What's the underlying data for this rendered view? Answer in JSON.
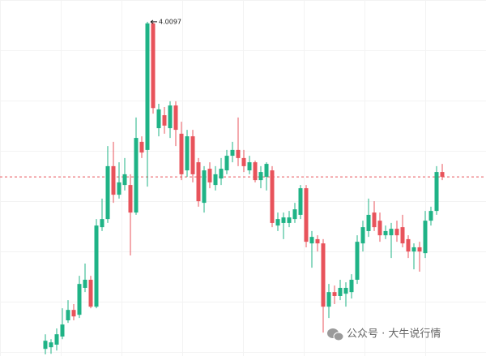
{
  "chart_data": {
    "type": "candlestick",
    "up_color": "#1fb386",
    "down_color": "#e8535b",
    "ylim": [
      2.98,
      4.077
    ],
    "open": [
      3.002,
      3.007,
      3.015,
      3.04,
      3.09,
      3.122,
      3.107,
      3.19,
      3.215,
      3.132,
      3.377,
      3.402,
      3.565,
      3.477,
      3.507,
      3.507,
      3.422,
      3.64,
      3.615,
      4.005,
      3.682,
      3.722,
      3.682,
      3.752,
      3.665,
      3.552,
      3.657,
      3.577,
      3.452,
      3.557,
      3.507,
      3.527,
      3.552,
      3.597,
      3.615,
      3.59,
      3.552,
      3.577,
      3.522,
      3.532,
      3.552,
      3.382,
      3.39,
      3.39,
      3.402,
      3.415,
      3.497,
      3.327,
      3.34,
      3.327,
      3.132,
      3.177,
      3.165,
      3.172,
      3.177,
      3.215,
      3.327,
      3.365,
      3.422,
      3.397,
      3.352,
      3.352,
      3.372,
      3.377,
      3.34,
      3.302,
      3.315,
      3.297,
      3.397,
      3.427,
      3.547
    ],
    "high": [
      3.047,
      3.032,
      3.065,
      3.127,
      3.152,
      3.14,
      3.227,
      3.265,
      3.227,
      3.402,
      3.465,
      3.627,
      3.64,
      3.577,
      3.59,
      3.54,
      3.715,
      3.657,
      4.0097,
      4.008,
      3.757,
      3.747,
      3.765,
      3.765,
      3.702,
      3.677,
      3.677,
      3.59,
      3.565,
      3.577,
      3.565,
      3.59,
      3.615,
      3.64,
      3.715,
      3.615,
      3.597,
      3.582,
      3.565,
      3.577,
      3.565,
      3.422,
      3.422,
      3.427,
      3.452,
      3.507,
      3.507,
      3.365,
      3.352,
      3.34,
      3.202,
      3.197,
      3.215,
      3.207,
      3.232,
      3.352,
      3.397,
      3.465,
      3.457,
      3.422,
      3.382,
      3.39,
      3.397,
      3.415,
      3.352,
      3.327,
      3.332,
      3.427,
      3.44,
      3.565,
      3.572
    ],
    "low": [
      2.985,
      2.987,
      2.997,
      3.032,
      3.082,
      3.09,
      3.097,
      3.177,
      3.127,
      3.127,
      3.365,
      3.39,
      3.452,
      3.465,
      3.49,
      3.29,
      3.415,
      3.59,
      3.502,
      3.727,
      3.657,
      3.665,
      3.652,
      3.627,
      3.522,
      3.532,
      3.515,
      3.44,
      3.422,
      3.497,
      3.49,
      3.507,
      3.54,
      3.577,
      3.565,
      3.547,
      3.54,
      3.515,
      3.497,
      3.49,
      3.377,
      3.365,
      3.34,
      3.377,
      3.39,
      3.402,
      3.315,
      3.252,
      3.302,
      3.052,
      3.097,
      3.14,
      3.152,
      3.132,
      3.157,
      3.202,
      3.302,
      3.347,
      3.365,
      3.332,
      3.34,
      3.282,
      3.332,
      3.315,
      3.282,
      3.247,
      3.24,
      3.282,
      3.382,
      3.415,
      3.522
    ],
    "close": [
      3.027,
      3.022,
      3.047,
      3.077,
      3.122,
      3.102,
      3.202,
      3.215,
      3.132,
      3.382,
      3.402,
      3.565,
      3.477,
      3.515,
      3.54,
      3.422,
      3.652,
      3.607,
      4.005,
      3.744,
      3.74,
      3.69,
      3.752,
      3.677,
      3.54,
      3.657,
      3.54,
      3.457,
      3.552,
      3.515,
      3.54,
      3.557,
      3.597,
      3.615,
      3.59,
      3.565,
      3.577,
      3.522,
      3.547,
      3.572,
      3.39,
      3.402,
      3.407,
      3.407,
      3.432,
      3.497,
      3.332,
      3.347,
      3.327,
      3.132,
      3.177,
      3.165,
      3.19,
      3.19,
      3.215,
      3.332,
      3.377,
      3.415,
      3.377,
      3.352,
      3.365,
      3.372,
      3.352,
      3.327,
      3.302,
      3.315,
      3.302,
      3.397,
      3.427,
      3.547,
      3.532
    ],
    "watermark": "公众号 · 大牛说行情"
  }
}
